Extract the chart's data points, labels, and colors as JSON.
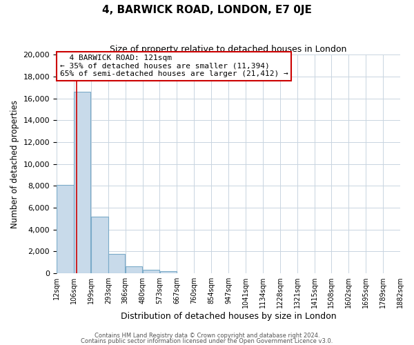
{
  "title": "4, BARWICK ROAD, LONDON, E7 0JE",
  "subtitle": "Size of property relative to detached houses in London",
  "xlabel": "Distribution of detached houses by size in London",
  "ylabel": "Number of detached properties",
  "bin_edges": [
    12,
    106,
    199,
    293,
    386,
    480,
    573,
    667,
    760,
    854,
    947,
    1041,
    1134,
    1228,
    1321,
    1415,
    1508,
    1602,
    1695,
    1789,
    1882
  ],
  "bin_labels": [
    "12sqm",
    "106sqm",
    "199sqm",
    "293sqm",
    "386sqm",
    "480sqm",
    "573sqm",
    "667sqm",
    "760sqm",
    "854sqm",
    "947sqm",
    "1041sqm",
    "1134sqm",
    "1228sqm",
    "1321sqm",
    "1415sqm",
    "1508sqm",
    "1602sqm",
    "1695sqm",
    "1789sqm",
    "1882sqm"
  ],
  "bar_heights": [
    8100,
    16600,
    5200,
    1750,
    650,
    290,
    210,
    0,
    0,
    0,
    0,
    0,
    0,
    0,
    0,
    0,
    0,
    0,
    0,
    0
  ],
  "bar_color": "#c8daea",
  "bar_edge_color": "#7aaac8",
  "red_line_x": 121,
  "ylim": [
    0,
    20000
  ],
  "yticks": [
    0,
    2000,
    4000,
    6000,
    8000,
    10000,
    12000,
    14000,
    16000,
    18000,
    20000
  ],
  "annotation_title": "4 BARWICK ROAD: 121sqm",
  "annotation_line1": "← 35% of detached houses are smaller (11,394)",
  "annotation_line2": "65% of semi-detached houses are larger (21,412) →",
  "annotation_box_facecolor": "#ffffff",
  "annotation_box_edgecolor": "#cc0000",
  "footer1": "Contains HM Land Registry data © Crown copyright and database right 2024.",
  "footer2": "Contains public sector information licensed under the Open Government Licence v3.0.",
  "grid_color": "#c8d4e0",
  "bg_color": "#ffffff",
  "title_fontsize": 11,
  "subtitle_fontsize": 9,
  "ylabel_fontsize": 8.5,
  "xlabel_fontsize": 9
}
